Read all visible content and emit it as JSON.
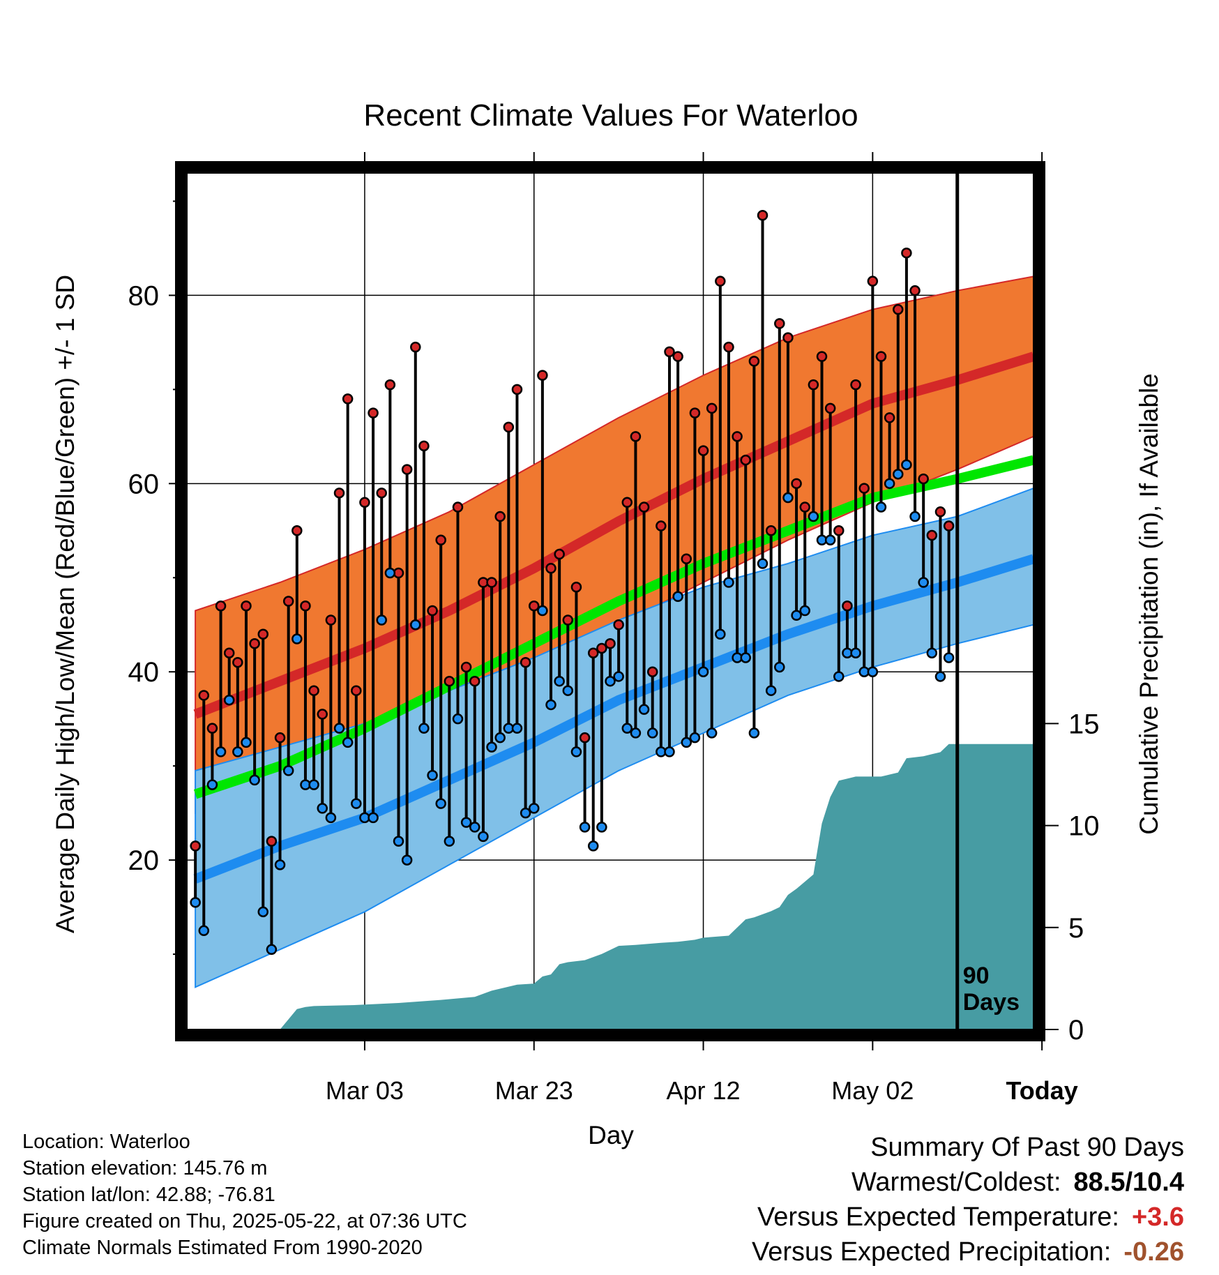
{
  "chart_data": {
    "type": "line",
    "title": "Recent Climate Values For Waterloo",
    "xlabel": "Day",
    "ylabel": "Average Daily High/Low/Mean (Red/Blue/Green) +/- 1 SD",
    "ylabel_right": "Cumulative Precipitation (in), If Available",
    "x_tick_labels": [
      "Mar 03",
      "Mar 23",
      "Apr 12",
      "May 02",
      "Today"
    ],
    "y_ticks": [
      20,
      40,
      60,
      80
    ],
    "y_right_ticks": [
      0,
      5,
      10,
      15
    ],
    "ylim": [
      2,
      93
    ],
    "y_right_lim": [
      0,
      42
    ],
    "x_range_days": [
      -91,
      9
    ],
    "today_marker_label": "90\nDays",
    "grid": true,
    "colors": {
      "high_band": "#f07830",
      "high_mean": "#d42828",
      "low_band": "#80c0e8",
      "low_mean": "#1e8cf0",
      "mean": "#00e600",
      "precip": "#479ca3",
      "high_dot": "#d42828",
      "low_dot": "#1e8cf0"
    },
    "normals": {
      "x": [
        -90,
        -80,
        -70,
        -60,
        -50,
        -40,
        -30,
        -20,
        -10,
        0,
        9
      ],
      "high_mean": [
        35.5,
        39,
        42.5,
        46.5,
        51,
        56,
        60.5,
        64.5,
        68.5,
        71,
        73.5
      ],
      "high_upper": [
        46.5,
        49.5,
        53,
        57,
        62,
        67,
        71.5,
        75.5,
        78.5,
        80.5,
        82
      ],
      "high_lower": [
        25,
        28,
        32,
        36.5,
        40.5,
        45,
        49.5,
        54,
        58,
        61.5,
        65
      ],
      "low_mean": [
        18,
        21.5,
        24.5,
        28.5,
        32.5,
        37,
        40.5,
        44,
        47,
        49.5,
        52
      ],
      "low_upper": [
        29.5,
        32,
        34.5,
        38,
        41.5,
        45.5,
        49,
        51.5,
        54.5,
        56.5,
        59.5
      ],
      "low_lower": [
        6.5,
        10.5,
        14.5,
        19.5,
        24.5,
        29.5,
        33.5,
        37.5,
        40.5,
        43,
        45
      ],
      "mean": [
        27,
        30,
        34,
        38.5,
        43,
        47.5,
        51.5,
        55,
        58.5,
        60.5,
        62.5
      ]
    },
    "daily": {
      "x": [
        -90,
        -89,
        -88,
        -87,
        -86,
        -85,
        -84,
        -83,
        -82,
        -81,
        -80,
        -79,
        -78,
        -77,
        -76,
        -75,
        -74,
        -73,
        -72,
        -71,
        -70,
        -69,
        -68,
        -67,
        -66,
        -65,
        -64,
        -63,
        -62,
        -61,
        -60,
        -59,
        -58,
        -57,
        -56,
        -55,
        -54,
        -53,
        -52,
        -51,
        -50,
        -49,
        -48,
        -47,
        -46,
        -45,
        -44,
        -43,
        -42,
        -41,
        -40,
        -39,
        -38,
        -37,
        -36,
        -35,
        -34,
        -33,
        -32,
        -31,
        -30,
        -29,
        -28,
        -27,
        -26,
        -25,
        -24,
        -23,
        -22,
        -21,
        -20,
        -19,
        -18,
        -17,
        -16,
        -15,
        -14,
        -13,
        -12,
        -11,
        -10,
        -9,
        -8,
        -7,
        -6,
        -5,
        -4,
        -3,
        -2,
        -1
      ],
      "high": [
        21.5,
        37.5,
        34,
        47,
        42,
        41,
        47,
        43,
        44,
        22,
        33,
        47.5,
        55,
        47,
        38,
        35.5,
        45.5,
        59,
        69,
        38,
        58,
        67.5,
        59,
        70.5,
        50.5,
        61.5,
        74.5,
        64,
        46.5,
        54,
        39,
        57.5,
        40.5,
        39,
        49.5,
        49.5,
        56.5,
        66,
        70,
        41,
        47,
        71.5,
        51,
        52.5,
        45.5,
        49,
        33,
        42,
        42.5,
        43,
        45,
        58,
        65,
        57.5,
        40,
        55.5,
        74,
        73.5,
        52,
        67.5,
        63.5,
        68,
        81.5,
        74.5,
        65,
        62.5,
        73,
        88.5,
        55,
        77,
        75.5,
        60,
        57.5,
        70.5,
        73.5,
        68,
        55,
        47,
        70.5,
        59.5,
        81.5,
        73.5,
        67,
        78.5,
        84.5,
        80.5,
        60.5,
        54.5,
        57,
        55.5
      ],
      "low": [
        15.5,
        12.5,
        28,
        31.5,
        37,
        31.5,
        32.5,
        28.5,
        14.5,
        10.5,
        19.5,
        29.5,
        43.5,
        28,
        28,
        25.5,
        24.5,
        34,
        32.5,
        26,
        24.5,
        24.5,
        45.5,
        50.5,
        22,
        20,
        45,
        34,
        29,
        26,
        22,
        35,
        24,
        23.5,
        22.5,
        32,
        33,
        34,
        34,
        25,
        25.5,
        46.5,
        36.5,
        39,
        38,
        31.5,
        23.5,
        21.5,
        23.5,
        39,
        39.5,
        34,
        33.5,
        36,
        33.5,
        31.5,
        31.5,
        48,
        32.5,
        33,
        40,
        33.5,
        44,
        49.5,
        41.5,
        41.5,
        33.5,
        51.5,
        38,
        40.5,
        58.5,
        46,
        46.5,
        56.5,
        54,
        54,
        39.5,
        42,
        42,
        40,
        40,
        57.5,
        60,
        61,
        62,
        56.5,
        49.5,
        42,
        39.5,
        41.5
      ]
    },
    "precip_cumulative": {
      "x": [
        -90,
        -80,
        -79,
        -78,
        -77,
        -76,
        -71,
        -66,
        -61,
        -57,
        -55,
        -52,
        -50,
        -49,
        -48,
        -47,
        -46,
        -44,
        -42,
        -40,
        -38,
        -35,
        -33,
        -31,
        -30,
        -27,
        -25,
        -24,
        -22,
        -21,
        -20,
        -19,
        -17,
        -16,
        -15,
        -14,
        -13,
        -12,
        -9,
        -8,
        -7,
        -6,
        -4,
        -3,
        -2,
        -1,
        9
      ],
      "y": [
        0,
        0,
        0.5,
        1.0,
        1.1,
        1.15,
        1.2,
        1.3,
        1.45,
        1.6,
        1.9,
        2.2,
        2.25,
        2.6,
        2.7,
        3.2,
        3.3,
        3.4,
        3.7,
        4.1,
        4.15,
        4.25,
        4.3,
        4.4,
        4.5,
        4.6,
        5.4,
        5.5,
        5.8,
        6.0,
        6.6,
        6.9,
        7.6,
        10.1,
        11.4,
        12.2,
        12.3,
        12.4,
        12.4,
        12.5,
        12.6,
        13.3,
        13.4,
        13.5,
        13.6,
        14.0,
        14.0
      ]
    }
  },
  "info": {
    "location": "Location: Waterloo",
    "elevation": "Station elevation: 145.76 m",
    "latlon": "Station lat/lon: 42.88; -76.81",
    "created": "Figure created on Thu, 2025-05-22, at 07:36 UTC",
    "normals": "Climate Normals Estimated From 1990-2020"
  },
  "summary": {
    "heading": "Summary Of Past 90 Days",
    "warm_cold_label": "Warmest/Coldest:",
    "warm_cold_value": "88.5/10.4",
    "temp_label": "Versus Expected Temperature:",
    "temp_value": "+3.6",
    "temp_color": "#d42828",
    "precip_label": "Versus Expected Precipitation:",
    "precip_value": "-0.26",
    "precip_color": "#a0522d"
  }
}
